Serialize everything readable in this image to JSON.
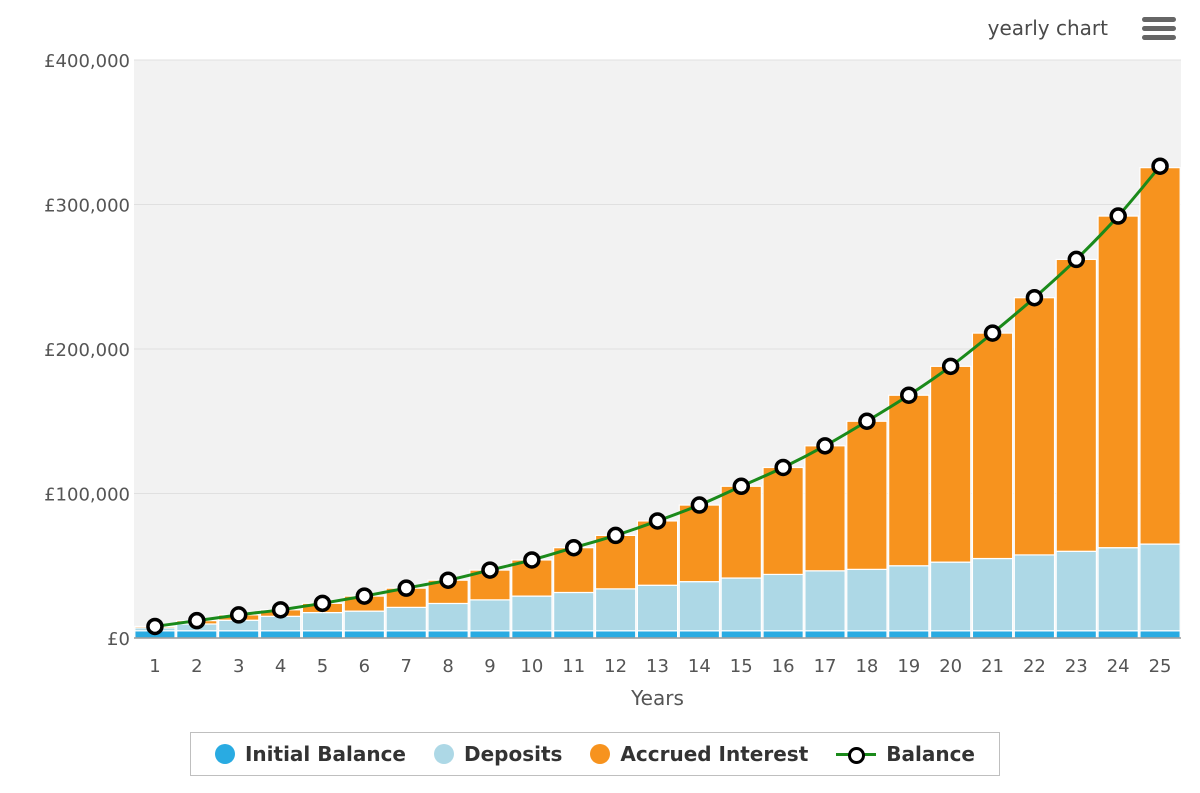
{
  "header": {
    "title": "yearly chart"
  },
  "menu": {
    "icon": "hamburger-menu-icon"
  },
  "colors": {
    "initial": "#29abe2",
    "deposits": "#add8e6",
    "interest": "#f7931e",
    "balance_line": "#1a8a1a",
    "plot_bg": "#f2f2f2",
    "grid": "#e0e0e0"
  },
  "chart_data": {
    "type": "bar",
    "stacked": true,
    "xlabel": "Years",
    "ylabel": "",
    "ylim": [
      0,
      400000
    ],
    "y_ticks": [
      0,
      100000,
      200000,
      300000,
      400000
    ],
    "y_tick_labels": [
      "£0",
      "£100,000",
      "£200,000",
      "£300,000",
      "£400,000"
    ],
    "categories": [
      "1",
      "2",
      "3",
      "4",
      "5",
      "6",
      "7",
      "8",
      "9",
      "10",
      "11",
      "12",
      "13",
      "14",
      "15",
      "16",
      "17",
      "18",
      "19",
      "20",
      "21",
      "22",
      "23",
      "24",
      "25"
    ],
    "series": [
      {
        "name": "Initial Balance",
        "type": "bar",
        "color": "#29abe2",
        "values": [
          5000,
          5000,
          5000,
          5000,
          5000,
          5000,
          5000,
          5000,
          5000,
          5000,
          5000,
          5000,
          5000,
          5000,
          5000,
          5000,
          5000,
          5000,
          5000,
          5000,
          5000,
          5000,
          5000,
          5000,
          5000
        ]
      },
      {
        "name": "Deposits",
        "type": "bar",
        "color": "#add8e6",
        "values": [
          2000,
          4700,
          7300,
          10000,
          12600,
          13600,
          16200,
          18900,
          21400,
          24000,
          26500,
          29000,
          31500,
          34000,
          36500,
          39000,
          41500,
          42500,
          45000,
          47500,
          50000,
          52500,
          55000,
          57500,
          60000
        ]
      },
      {
        "name": "Accrued Interest",
        "type": "bar",
        "color": "#f7931e",
        "values": [
          1000,
          2300,
          3700,
          4500,
          6400,
          10400,
          13300,
          16100,
          20600,
          25000,
          31000,
          37000,
          44500,
          53000,
          63500,
          74000,
          86500,
          102500,
          118000,
          135500,
          156000,
          178000,
          202000,
          229500,
          260500
        ]
      },
      {
        "name": "Balance",
        "type": "line",
        "color": "#1a8a1a",
        "values": [
          8000,
          12000,
          16000,
          19500,
          24000,
          29000,
          34500,
          40000,
          47000,
          54000,
          62500,
          71000,
          81000,
          92000,
          105000,
          118000,
          133000,
          150000,
          168000,
          188000,
          211000,
          235500,
          262000,
          292000,
          326500
        ]
      }
    ],
    "legend": {
      "placement": "bottom",
      "items": [
        {
          "label": "Initial Balance",
          "icon": "circle"
        },
        {
          "label": "Deposits",
          "icon": "circle"
        },
        {
          "label": "Accrued Interest",
          "icon": "circle"
        },
        {
          "label": "Balance",
          "icon": "line-with-marker"
        }
      ]
    },
    "grid": true
  }
}
